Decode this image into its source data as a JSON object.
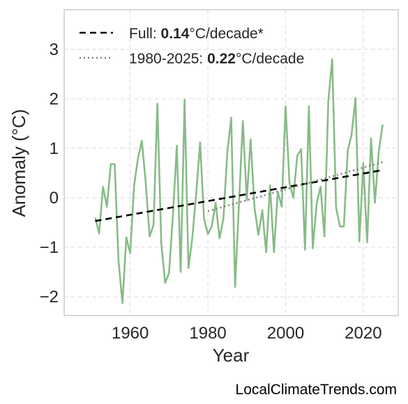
{
  "chart_data": {
    "type": "line",
    "xlabel": "Year",
    "ylabel": "Anomaly (°C)",
    "xlim": [
      1943,
      2029
    ],
    "ylim": [
      -2.38,
      3.8
    ],
    "xticks": [
      1960,
      1980,
      2000,
      2020
    ],
    "yticks": [
      -2,
      -1,
      0,
      1,
      2,
      3
    ],
    "ytick_labels": [
      "−2",
      "−1",
      "0",
      "1",
      "2",
      "3"
    ],
    "grid": true,
    "legend_position": "top-left",
    "series": [
      {
        "style": "line",
        "color": "#88bb88",
        "x": [
          1951,
          1952,
          1953,
          1954,
          1955,
          1956,
          1957,
          1958,
          1959,
          1960,
          1961,
          1962,
          1963,
          1964,
          1965,
          1966,
          1967,
          1968,
          1969,
          1970,
          1971,
          1972,
          1973,
          1974,
          1975,
          1976,
          1977,
          1978,
          1979,
          1980,
          1981,
          1982,
          1983,
          1984,
          1985,
          1986,
          1987,
          1988,
          1989,
          1990,
          1991,
          1992,
          1993,
          1994,
          1995,
          1996,
          1997,
          1998,
          1999,
          2000,
          2001,
          2002,
          2003,
          2004,
          2005,
          2006,
          2007,
          2008,
          2009,
          2010,
          2011,
          2012,
          2013,
          2014,
          2015,
          2016,
          2017,
          2018,
          2019,
          2020,
          2021,
          2022,
          2023,
          2024,
          2025
        ],
        "y": [
          -0.4,
          -0.72,
          0.22,
          -0.18,
          0.68,
          0.68,
          -1.28,
          -2.13,
          -0.8,
          -1.12,
          0.25,
          0.8,
          1.15,
          0.3,
          -0.78,
          -0.55,
          1.9,
          -0.92,
          -1.72,
          -1.52,
          -0.35,
          1.05,
          -1.5,
          1.98,
          -1.42,
          -0.8,
          0.1,
          1.12,
          -0.42,
          -0.73,
          -0.58,
          -0.1,
          -0.82,
          -0.42,
          0.92,
          1.62,
          -1.8,
          -0.12,
          1.55,
          -0.05,
          1.18,
          -0.2,
          -0.75,
          -0.25,
          -1.1,
          0.25,
          -1.1,
          0.12,
          -0.18,
          1.85,
          0.3,
          0.0,
          0.85,
          0.98,
          -1.05,
          1.85,
          -1.02,
          -0.12,
          0.22,
          -0.78,
          1.95,
          2.8,
          -0.2,
          -0.58,
          -0.58,
          0.95,
          1.28,
          2.02,
          -0.88,
          0.7,
          -0.9,
          1.2,
          -0.1,
          0.95,
          1.48
        ]
      },
      {
        "style": "dashed",
        "color": "#000000",
        "x": [
          1951,
          2025
        ],
        "y": [
          -0.47,
          0.56
        ]
      },
      {
        "style": "dotted",
        "color": "#808080",
        "x": [
          1980,
          2025
        ],
        "y": [
          -0.27,
          0.72
        ]
      }
    ],
    "legend": [
      {
        "prefix": "Full: ",
        "value": "0.14",
        "suffix": "°C/decade*"
      },
      {
        "prefix": "1980-2025: ",
        "value": "0.22",
        "suffix": "°C/decade"
      }
    ]
  },
  "credit": "LocalClimateTrends.com"
}
